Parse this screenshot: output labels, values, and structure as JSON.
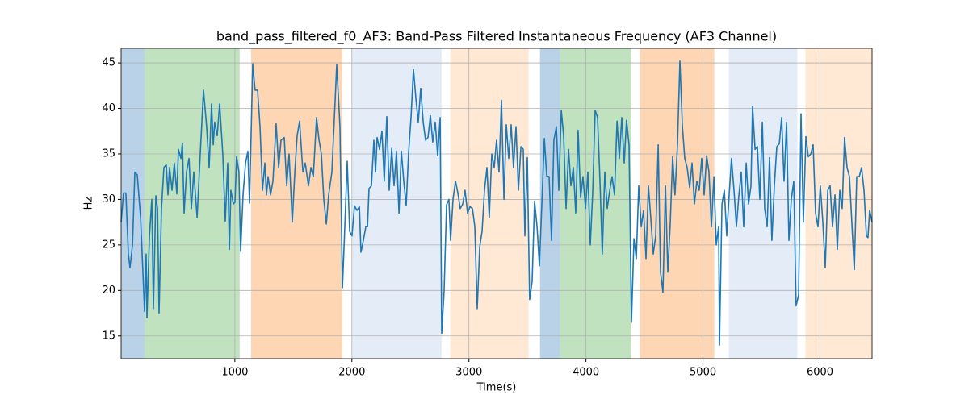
{
  "chart_data": {
    "type": "line",
    "title": "band_pass_filtered_f0_AF3: Band-Pass Filtered Instantaneous Frequency (AF3 Channel)",
    "x_label": "Time(s)",
    "y_label": "Hz",
    "xlim": [
      28,
      6445
    ],
    "ylim": [
      12.5,
      46.6
    ],
    "xticks": [
      1000,
      2000,
      3000,
      4000,
      5000,
      6000
    ],
    "yticks": [
      15,
      20,
      25,
      30,
      35,
      40,
      45
    ],
    "grid": true,
    "spans": [
      {
        "start": 28,
        "end": 228,
        "color": "#bad2e7"
      },
      {
        "start": 228,
        "end": 1041,
        "color": "#c0e2bf"
      },
      {
        "start": 1138,
        "end": 1917,
        "color": "#ffd6b3"
      },
      {
        "start": 2000,
        "end": 2766,
        "color": "#e4edf7"
      },
      {
        "start": 2841,
        "end": 3510,
        "color": "#ffe8d4"
      },
      {
        "start": 3607,
        "end": 3779,
        "color": "#bad2e7"
      },
      {
        "start": 3779,
        "end": 4386,
        "color": "#c0e2bf"
      },
      {
        "start": 4462,
        "end": 5097,
        "color": "#ffd6b3"
      },
      {
        "start": 5221,
        "end": 5807,
        "color": "#e4edf7"
      },
      {
        "start": 5876,
        "end": 6445,
        "color": "#ffe8d4"
      }
    ],
    "series": [
      {
        "color": "#1f77b4",
        "x": [
          28,
          49,
          69,
          90,
          104,
          125,
          145,
          166,
          194,
          214,
          228,
          242,
          249,
          270,
          290,
          304,
          325,
          339,
          352,
          373,
          394,
          414,
          428,
          442,
          463,
          483,
          504,
          518,
          539,
          552,
          566,
          587,
          608,
          628,
          649,
          677,
          704,
          732,
          759,
          780,
          801,
          815,
          828,
          849,
          870,
          897,
          918,
          939,
          953,
          966,
          987,
          1001,
          1015,
          1035,
          1049,
          1070,
          1091,
          1111,
          1125,
          1153,
          1173,
          1194,
          1215,
          1236,
          1256,
          1270,
          1284,
          1305,
          1325,
          1353,
          1374,
          1394,
          1422,
          1443,
          1463,
          1491,
          1512,
          1532,
          1553,
          1581,
          1601,
          1629,
          1650,
          1670,
          1698,
          1719,
          1739,
          1760,
          1781,
          1801,
          1829,
          1850,
          1870,
          1898,
          1919,
          1939,
          1960,
          1981,
          2001,
          2022,
          2043,
          2064,
          2077,
          2098,
          2119,
          2133,
          2146,
          2167,
          2188,
          2202,
          2215,
          2236,
          2257,
          2277,
          2298,
          2319,
          2340,
          2360,
          2381,
          2402,
          2422,
          2443,
          2464,
          2484,
          2505,
          2526,
          2547,
          2567,
          2588,
          2609,
          2629,
          2650,
          2671,
          2691,
          2712,
          2733,
          2754,
          2767,
          2788,
          2809,
          2829,
          2843,
          2864,
          2885,
          2905,
          2926,
          2947,
          2967,
          2988,
          3009,
          3030,
          3050,
          3071,
          3092,
          3112,
          3133,
          3154,
          3174,
          3195,
          3216,
          3236,
          3257,
          3278,
          3299,
          3319,
          3340,
          3361,
          3381,
          3402,
          3423,
          3444,
          3464,
          3478,
          3499,
          3519,
          3540,
          3561,
          3582,
          3602,
          3623,
          3644,
          3664,
          3685,
          3706,
          3726,
          3747,
          3768,
          3789,
          3809,
          3830,
          3851,
          3871,
          3892,
          3913,
          3933,
          3954,
          3975,
          3996,
          4016,
          4037,
          4058,
          4078,
          4099,
          4120,
          4140,
          4161,
          4182,
          4203,
          4223,
          4244,
          4265,
          4285,
          4306,
          4327,
          4347,
          4368,
          4389,
          4410,
          4430,
          4451,
          4472,
          4492,
          4513,
          4534,
          4554,
          4575,
          4596,
          4617,
          4637,
          4658,
          4679,
          4699,
          4720,
          4741,
          4761,
          4782,
          4803,
          4824,
          4844,
          4865,
          4886,
          4906,
          4927,
          4948,
          4968,
          4989,
          5010,
          5031,
          5051,
          5072,
          5093,
          5113,
          5134,
          5141,
          5162,
          5182,
          5203,
          5224,
          5244,
          5265,
          5286,
          5307,
          5327,
          5348,
          5369,
          5389,
          5410,
          5424,
          5445,
          5465,
          5486,
          5507,
          5527,
          5548,
          5569,
          5589,
          5610,
          5631,
          5652,
          5672,
          5693,
          5714,
          5734,
          5755,
          5776,
          5796,
          5817,
          5838,
          5858,
          5879,
          5900,
          5921,
          5941,
          5962,
          5983,
          6003,
          6024,
          6045,
          6066,
          6086,
          6107,
          6128,
          6148,
          6169,
          6190,
          6210,
          6231,
          6252,
          6272,
          6293,
          6314,
          6335,
          6355,
          6376,
          6397,
          6410,
          6424,
          6445
        ],
        "values": [
          27.5,
          30.7,
          30.7,
          24,
          22.5,
          25,
          33,
          32.7,
          28,
          22,
          17.7,
          24,
          17,
          26,
          30,
          18,
          30.4,
          29,
          17.5,
          29,
          33.5,
          33.8,
          30.5,
          33.5,
          31,
          34,
          30.6,
          35.5,
          34.5,
          36.2,
          28.5,
          33,
          34.5,
          29,
          33,
          28,
          35,
          42,
          38,
          33.5,
          40.5,
          36,
          38.5,
          37,
          40.5,
          35,
          27.6,
          34,
          24.5,
          31,
          29.5,
          29.7,
          34.7,
          33,
          24.3,
          30.5,
          34,
          35.3,
          29.6,
          44.9,
          42,
          42,
          38,
          31,
          34,
          30.5,
          32.5,
          30.5,
          32,
          38.3,
          33.5,
          36.5,
          36.8,
          31.5,
          35,
          27.5,
          33,
          37,
          38.6,
          33,
          34,
          31.5,
          33.5,
          32.5,
          39,
          36.5,
          35,
          30,
          27.3,
          30.5,
          33,
          39,
          44.8,
          38,
          20.3,
          27,
          34.2,
          26.5,
          26,
          29.3,
          28.8,
          29.2,
          24.2,
          25.5,
          27,
          27,
          31.2,
          31.5,
          36.5,
          33,
          36.8,
          35.5,
          37.5,
          32,
          39.1,
          31,
          35.6,
          31.5,
          35.3,
          28.5,
          35.3,
          32,
          29.3,
          35,
          39,
          44.3,
          41,
          38.5,
          42.2,
          38.5,
          36.5,
          36.8,
          39.2,
          36.3,
          38.5,
          34.8,
          39,
          15.3,
          20,
          29.4,
          30,
          25.5,
          30,
          32,
          30.7,
          29,
          29.5,
          31,
          28.5,
          29.2,
          29,
          27,
          18,
          24.8,
          26.5,
          31,
          33.5,
          28,
          35,
          33.5,
          36.5,
          33,
          40.9,
          30,
          38.2,
          34.5,
          38.2,
          33.5,
          38,
          31,
          35.8,
          35.5,
          26,
          34.6,
          19,
          21,
          29.8,
          27,
          22.7,
          29.5,
          36.7,
          32.6,
          32.5,
          25.5,
          36.5,
          38,
          31,
          39.8,
          37,
          29,
          35.5,
          31.5,
          33.5,
          28.5,
          37.6,
          30.2,
          32.5,
          29,
          33,
          25,
          31,
          39.8,
          39,
          32,
          24,
          33,
          29,
          31,
          32.5,
          30.5,
          38.6,
          34.5,
          39,
          34,
          38.7,
          36,
          16.5,
          25.7,
          23.5,
          31.5,
          27,
          28.8,
          23.5,
          31.5,
          28,
          24,
          26,
          36,
          22,
          19.8,
          31.5,
          22,
          27.3,
          34.7,
          30.5,
          36,
          45.2,
          38,
          34.5,
          33.5,
          31.3,
          34,
          29.5,
          32,
          31,
          34.5,
          30.5,
          34.8,
          33,
          27,
          32.5,
          25,
          27,
          14,
          29.5,
          31,
          26,
          30.5,
          34.5,
          31,
          27,
          30.5,
          33,
          27,
          34,
          29.5,
          31.5,
          40.2,
          35.5,
          35.8,
          30,
          38.5,
          29,
          27,
          34.6,
          25.5,
          31.5,
          35.8,
          36.1,
          39,
          32,
          38.5,
          25.5,
          30,
          32,
          18.3,
          19.5,
          39.4,
          27.5,
          36.9,
          34.7,
          35,
          36,
          28.5,
          27,
          31.5,
          27.5,
          22.5,
          31,
          31.5,
          27,
          30.5,
          24.5,
          31,
          29,
          36.8,
          33.5,
          32.5,
          27.5,
          22.3,
          32.5,
          32.5,
          33.5,
          31,
          26,
          25.8,
          28.8,
          27.5
        ]
      }
    ]
  }
}
